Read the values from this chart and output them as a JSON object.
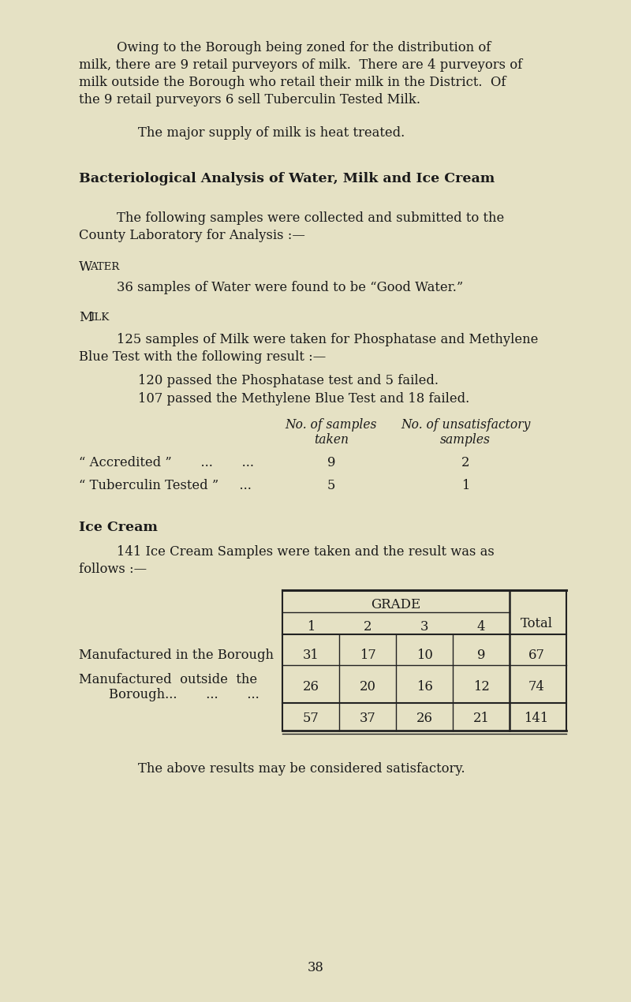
{
  "bg_color": "#e5e1c4",
  "text_color": "#1a1a1a",
  "page_number": "38",
  "section_heading": "Bacteriological Analysis of Water, Milk and Ice Cream",
  "ice_cream_heading": "Ice Cream",
  "grade_cols": [
    "1",
    "2",
    "3",
    "4"
  ],
  "ice_cream_row1_label": "Manufactured in the Borough",
  "ice_cream_row1_vals": [
    31,
    17,
    10,
    9
  ],
  "ice_cream_row1_total": 67,
  "ice_cream_row2a_label": "Manufactured  outside  the",
  "ice_cream_row2b_label": "Borough...       ...       ...",
  "ice_cream_row2_vals": [
    26,
    20,
    16,
    12
  ],
  "ice_cream_row2_total": 74,
  "ice_cream_totals": [
    57,
    37,
    26,
    21
  ],
  "ice_cream_grand_total": 141,
  "conclusion": "The above results may be considered satisfactory."
}
